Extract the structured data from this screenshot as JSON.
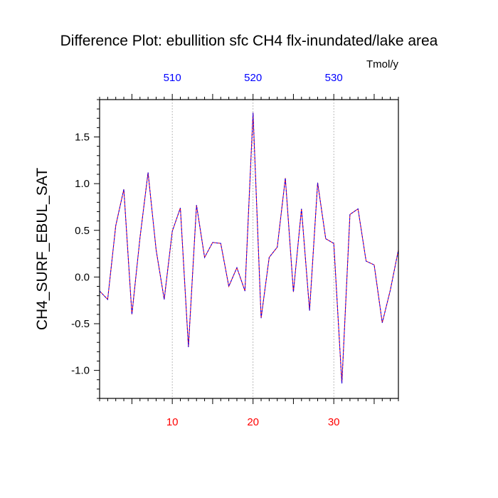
{
  "chart_data": {
    "type": "line",
    "title": "Difference Plot: ebullition sfc CH4 flx-inundated/lake area",
    "units": "Tmol/y",
    "ylabel": "CH4_SURF_EBUL_SAT",
    "xlabel": "",
    "xlim": [
      1,
      38
    ],
    "ylim": [
      -1.3,
      1.9
    ],
    "y_ticks": [
      1.5,
      1.0,
      0.5,
      0.0,
      -0.5,
      -1.0
    ],
    "y_tick_labels": [
      "1.5",
      "1.0",
      "0.5",
      "0.0",
      "-0.5",
      "-1.0"
    ],
    "x_bottom_ticks": [
      10,
      20,
      30
    ],
    "x_bottom_tick_labels": [
      "10",
      "20",
      "30"
    ],
    "x_top_tick_labels": [
      "510",
      "520",
      "530"
    ],
    "grid": "vertical dotted lines at major x ticks",
    "colors": {
      "line_primary": "#ff0000",
      "line_overlay": "#0000ff",
      "bottom_tick_labels": "#ff0000",
      "top_tick_labels": "#0000ff",
      "grid": "#aaaaaa"
    },
    "x": [
      1,
      2,
      3,
      4,
      5,
      6,
      7,
      8,
      9,
      10,
      11,
      12,
      13,
      14,
      15,
      16,
      17,
      18,
      19,
      20,
      21,
      22,
      23,
      24,
      25,
      26,
      27,
      28,
      29,
      30,
      31,
      32,
      33,
      34,
      35,
      36,
      37,
      38
    ],
    "series": [
      {
        "values": [
          -0.15,
          -0.24,
          0.55,
          0.94,
          -0.4,
          0.42,
          1.12,
          0.29,
          -0.24,
          0.49,
          0.74,
          -0.75,
          0.77,
          0.21,
          0.37,
          0.36,
          -0.1,
          0.1,
          -0.15,
          1.76,
          -0.44,
          0.21,
          0.32,
          1.06,
          -0.16,
          0.73,
          -0.36,
          1.01,
          0.41,
          0.36,
          -1.14,
          0.67,
          0.73,
          0.17,
          0.13,
          -0.49,
          -0.14,
          0.29
        ]
      }
    ]
  }
}
